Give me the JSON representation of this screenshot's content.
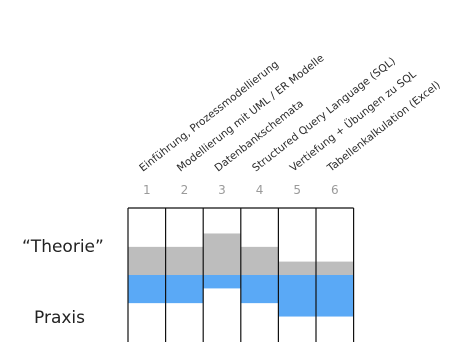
{
  "columns": [
    {
      "number": "1",
      "topic": "Einführung, Prozessmodellierung",
      "theorie": 0.42,
      "praxis": 0.42
    },
    {
      "number": "2",
      "topic": "Modellierung mit UML / ER Modelle",
      "theorie": 0.42,
      "praxis": 0.42
    },
    {
      "number": "3",
      "topic": "Datenbankschemata",
      "theorie": 0.62,
      "praxis": 0.2
    },
    {
      "number": "4",
      "topic": "Structured Query Language (SQL)",
      "theorie": 0.42,
      "praxis": 0.42
    },
    {
      "number": "5",
      "topic": "Vertiefung + Übungen zu SQL",
      "theorie": 0.2,
      "praxis": 0.62
    },
    {
      "number": "6",
      "topic": "Tabellenkalkulation (Excel)",
      "theorie": 0.2,
      "praxis": 0.62
    }
  ],
  "labels": {
    "theorie": "“Theorie”",
    "praxis": "Praxis"
  },
  "colors": {
    "theorie": "#bdbdbd",
    "praxis": "#5aa9f6",
    "border": "#111111",
    "numbers": "#9a9a9a"
  }
}
